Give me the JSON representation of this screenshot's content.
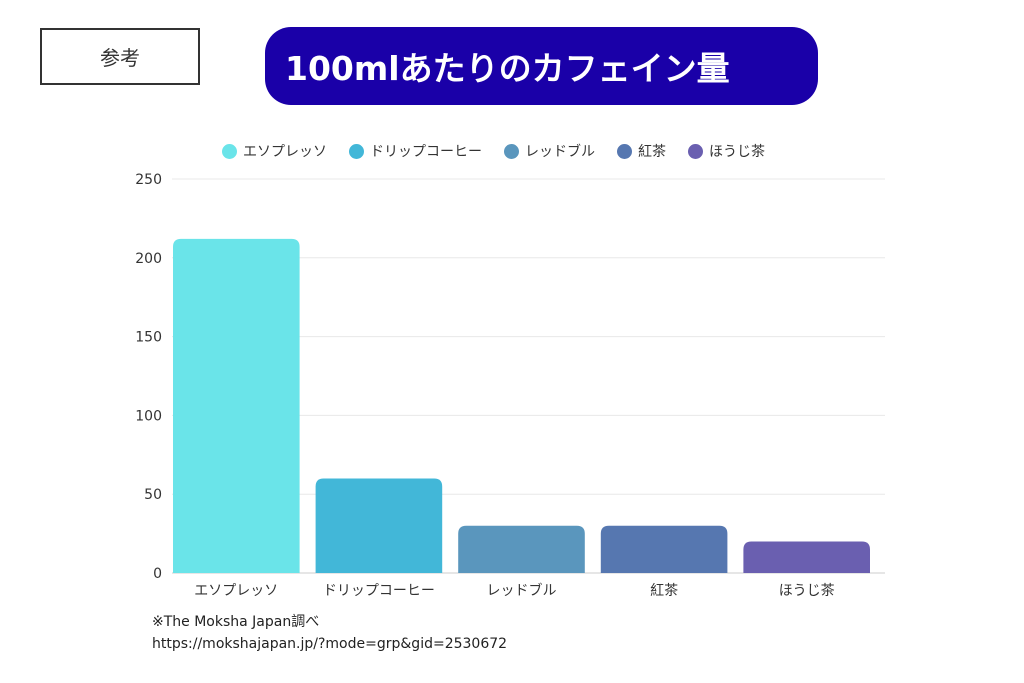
{
  "header": {
    "ref_label": "参考",
    "title": "100mlあたりのカフェイン量"
  },
  "chart_data": {
    "type": "bar",
    "title": "100mlあたりのカフェイン量",
    "categories": [
      "エソプレッソ",
      "ドリップコーヒー",
      "レッドブル",
      "紅茶",
      "ほうじ茶"
    ],
    "values": [
      212,
      60,
      30,
      30,
      20
    ],
    "colors": [
      "#6ae4e9",
      "#42b7d8",
      "#5a96bd",
      "#5677b0",
      "#6a5fb0"
    ],
    "ylim": [
      0,
      250
    ],
    "yticks": [
      0,
      50,
      100,
      150,
      200,
      250
    ],
    "grid": true,
    "legend": "top"
  },
  "footer": {
    "source": "※The Moksha Japan調べ",
    "url": "https://mokshajapan.jp/?mode=grp&gid=2530672"
  }
}
